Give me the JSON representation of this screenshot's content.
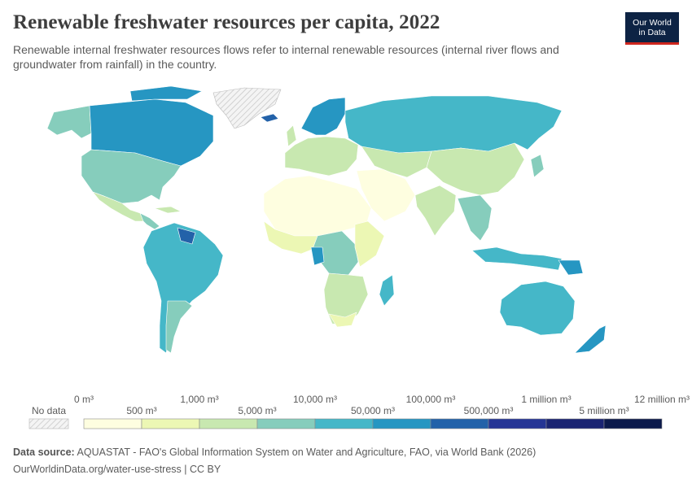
{
  "title": "Renewable freshwater resources per capita, 2022",
  "subtitle": "Renewable internal freshwater resources flows refer to internal renewable resources (internal river flows and groundwater from rainfall) in the country.",
  "logo": {
    "line1": "Our World",
    "line2": "in Data",
    "bg": "#0d2344",
    "accent": "#ce261e"
  },
  "legend": {
    "no_data_label": "No data",
    "bins": [
      {
        "label": "0 m³",
        "color": "#fefee0"
      },
      {
        "label": "500 m³",
        "color": "#ecf7b4"
      },
      {
        "label": "1,000 m³",
        "color": "#c8e8b0"
      },
      {
        "label": "5,000 m³",
        "color": "#86cdbc"
      },
      {
        "label": "10,000 m³",
        "color": "#45b7c8"
      },
      {
        "label": "50,000 m³",
        "color": "#2696c2"
      },
      {
        "label": "100,000 m³",
        "color": "#2362a9"
      },
      {
        "label": "500,000 m³",
        "color": "#253595"
      },
      {
        "label": "1 million m³",
        "color": "#1a2472"
      },
      {
        "label": "5 million m³",
        "color": "#0c1a4b"
      },
      {
        "label": "12 million m³",
        "color": ""
      }
    ]
  },
  "footer": {
    "source_label": "Data source:",
    "source_text": "AQUASTAT - FAO's Global Information System on Water and Agriculture, FAO, via World Bank (2026)",
    "url": "OurWorldinData.org/water-use-stress",
    "license": "CC BY"
  }
}
